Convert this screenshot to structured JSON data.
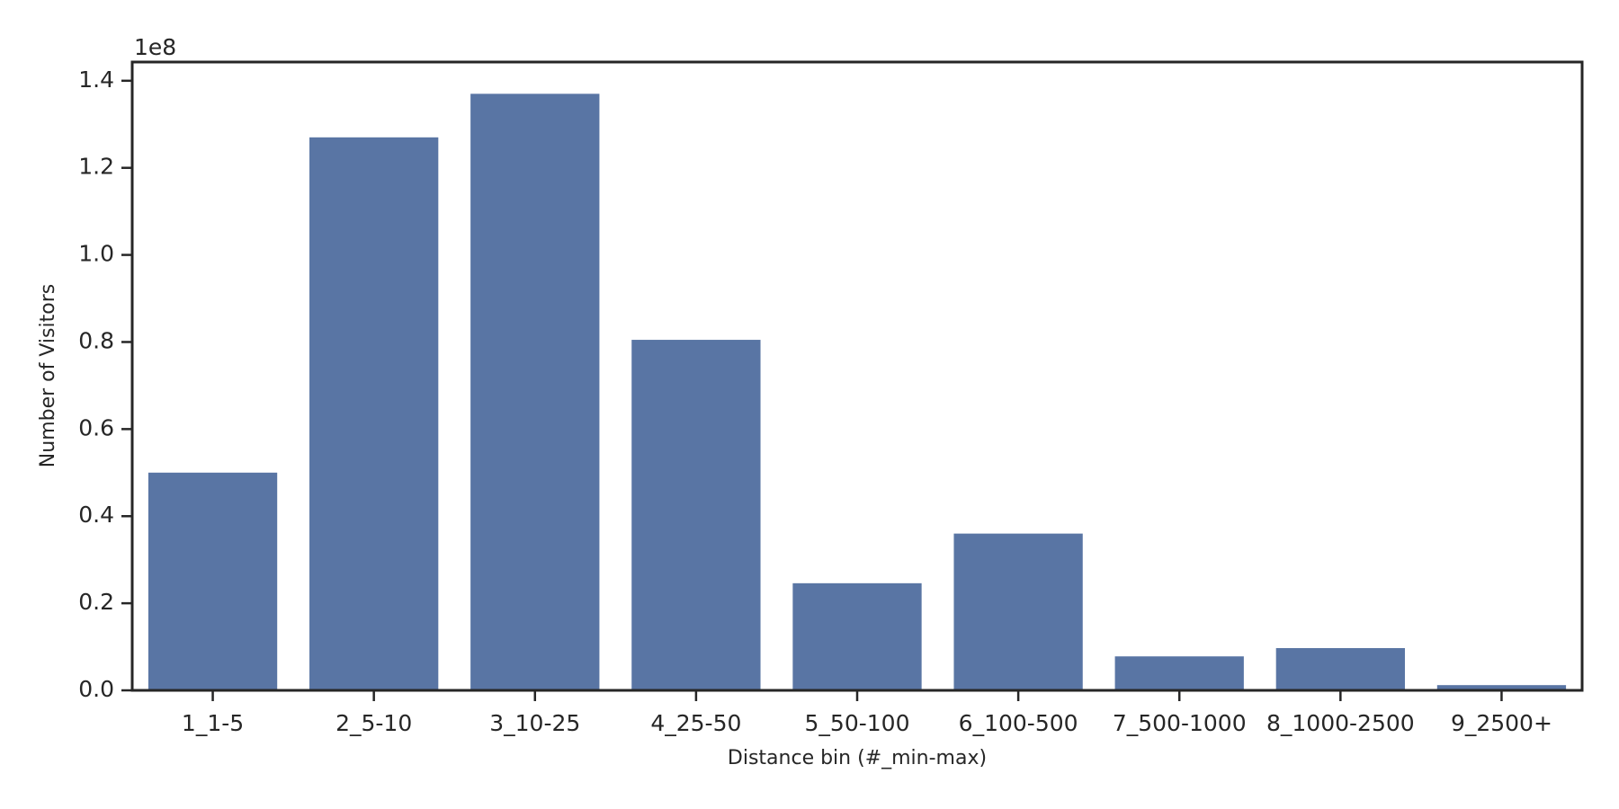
{
  "chart_data": {
    "type": "bar",
    "x_label": "Distance bin (#_min-max)",
    "y_label": "Number of Visitors",
    "y_offset_label": "1e8",
    "categories": [
      "1_1-5",
      "2_5-10",
      "3_10-25",
      "4_25-50",
      "5_50-100",
      "6_100-500",
      "7_500-1000",
      "8_1000-2500",
      "9_2500+"
    ],
    "values": [
      0.5,
      1.27,
      1.37,
      0.805,
      0.246,
      0.36,
      0.078,
      0.097,
      0.012
    ],
    "color": "#5975a4",
    "ylim": [
      0,
      1.443
    ],
    "yticks": [
      {
        "value": 0,
        "label": "0.0"
      },
      0.2,
      0.4,
      0.6,
      0.8,
      {
        "value": 1,
        "label": "1.0"
      },
      1.2,
      1.4
    ],
    "grid": false
  }
}
